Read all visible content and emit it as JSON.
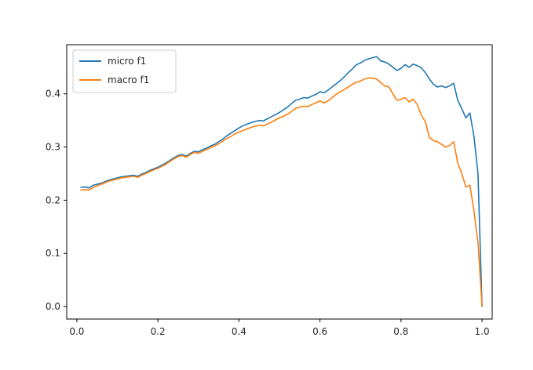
{
  "chart_data": {
    "type": "line",
    "title": "",
    "xlabel": "",
    "ylabel": "",
    "xlim": [
      -0.025,
      1.025
    ],
    "ylim": [
      -0.0235,
      0.4925
    ],
    "grid": false,
    "legend_position": "top-left",
    "x_ticks": [
      0.0,
      0.2,
      0.4,
      0.6,
      0.8,
      1.0
    ],
    "x_tick_labels": [
      "0.0",
      "0.2",
      "0.4",
      "0.6",
      "0.8",
      "1.0"
    ],
    "y_ticks": [
      0.0,
      0.1,
      0.2,
      0.3,
      0.4
    ],
    "y_tick_labels": [
      "0.0",
      "0.1",
      "0.2",
      "0.3",
      "0.4"
    ],
    "series": [
      {
        "name": "micro f1",
        "color": "#1f77b4",
        "x": [
          0.01,
          0.02,
          0.03,
          0.04,
          0.05,
          0.06,
          0.07,
          0.08,
          0.09,
          0.1,
          0.11,
          0.12,
          0.13,
          0.14,
          0.15,
          0.16,
          0.17,
          0.18,
          0.19,
          0.2,
          0.21,
          0.22,
          0.23,
          0.24,
          0.25,
          0.26,
          0.27,
          0.28,
          0.29,
          0.3,
          0.31,
          0.32,
          0.33,
          0.34,
          0.35,
          0.36,
          0.37,
          0.38,
          0.39,
          0.4,
          0.41,
          0.42,
          0.43,
          0.44,
          0.45,
          0.46,
          0.47,
          0.48,
          0.49,
          0.5,
          0.51,
          0.52,
          0.53,
          0.54,
          0.55,
          0.56,
          0.57,
          0.58,
          0.59,
          0.6,
          0.61,
          0.62,
          0.63,
          0.64,
          0.65,
          0.66,
          0.67,
          0.68,
          0.69,
          0.7,
          0.71,
          0.72,
          0.73,
          0.74,
          0.75,
          0.76,
          0.77,
          0.78,
          0.79,
          0.8,
          0.81,
          0.82,
          0.83,
          0.84,
          0.85,
          0.86,
          0.87,
          0.88,
          0.89,
          0.9,
          0.91,
          0.92,
          0.93,
          0.94,
          0.95,
          0.96,
          0.97,
          0.98,
          0.99,
          1.0
        ],
        "y": [
          0.224,
          0.225,
          0.223,
          0.228,
          0.23,
          0.232,
          0.235,
          0.238,
          0.24,
          0.242,
          0.244,
          0.245,
          0.246,
          0.247,
          0.245,
          0.249,
          0.252,
          0.256,
          0.259,
          0.262,
          0.266,
          0.27,
          0.275,
          0.28,
          0.284,
          0.286,
          0.283,
          0.288,
          0.292,
          0.291,
          0.295,
          0.298,
          0.302,
          0.305,
          0.31,
          0.315,
          0.321,
          0.326,
          0.331,
          0.336,
          0.34,
          0.343,
          0.346,
          0.348,
          0.35,
          0.349,
          0.353,
          0.357,
          0.361,
          0.365,
          0.37,
          0.375,
          0.382,
          0.388,
          0.39,
          0.393,
          0.392,
          0.396,
          0.399,
          0.404,
          0.402,
          0.407,
          0.413,
          0.419,
          0.425,
          0.432,
          0.44,
          0.447,
          0.455,
          0.458,
          0.463,
          0.466,
          0.468,
          0.47,
          0.462,
          0.46,
          0.456,
          0.45,
          0.444,
          0.448,
          0.455,
          0.45,
          0.456,
          0.453,
          0.449,
          0.44,
          0.428,
          0.418,
          0.413,
          0.415,
          0.412,
          0.415,
          0.42,
          0.388,
          0.372,
          0.355,
          0.364,
          0.32,
          0.25,
          0.0
        ]
      },
      {
        "name": "macro f1",
        "color": "#ff7f0e",
        "x": [
          0.01,
          0.02,
          0.03,
          0.04,
          0.05,
          0.06,
          0.07,
          0.08,
          0.09,
          0.1,
          0.11,
          0.12,
          0.13,
          0.14,
          0.15,
          0.16,
          0.17,
          0.18,
          0.19,
          0.2,
          0.21,
          0.22,
          0.23,
          0.24,
          0.25,
          0.26,
          0.27,
          0.28,
          0.29,
          0.3,
          0.31,
          0.32,
          0.33,
          0.34,
          0.35,
          0.36,
          0.37,
          0.38,
          0.39,
          0.4,
          0.41,
          0.42,
          0.43,
          0.44,
          0.45,
          0.46,
          0.47,
          0.48,
          0.49,
          0.5,
          0.51,
          0.52,
          0.53,
          0.54,
          0.55,
          0.56,
          0.57,
          0.58,
          0.59,
          0.6,
          0.61,
          0.62,
          0.63,
          0.64,
          0.65,
          0.66,
          0.67,
          0.68,
          0.69,
          0.7,
          0.71,
          0.72,
          0.73,
          0.74,
          0.75,
          0.76,
          0.77,
          0.78,
          0.79,
          0.8,
          0.81,
          0.82,
          0.83,
          0.84,
          0.85,
          0.86,
          0.87,
          0.88,
          0.89,
          0.9,
          0.91,
          0.92,
          0.93,
          0.94,
          0.95,
          0.96,
          0.97,
          0.98,
          0.99,
          1.0
        ],
        "y": [
          0.219,
          0.22,
          0.219,
          0.224,
          0.227,
          0.23,
          0.233,
          0.236,
          0.238,
          0.24,
          0.242,
          0.243,
          0.244,
          0.245,
          0.243,
          0.247,
          0.25,
          0.254,
          0.257,
          0.26,
          0.264,
          0.268,
          0.273,
          0.278,
          0.282,
          0.284,
          0.281,
          0.286,
          0.29,
          0.288,
          0.292,
          0.295,
          0.299,
          0.302,
          0.306,
          0.311,
          0.316,
          0.32,
          0.325,
          0.328,
          0.331,
          0.334,
          0.337,
          0.339,
          0.341,
          0.34,
          0.343,
          0.347,
          0.351,
          0.355,
          0.358,
          0.362,
          0.367,
          0.373,
          0.375,
          0.377,
          0.376,
          0.38,
          0.383,
          0.387,
          0.383,
          0.387,
          0.393,
          0.399,
          0.404,
          0.408,
          0.413,
          0.418,
          0.422,
          0.424,
          0.428,
          0.43,
          0.429,
          0.428,
          0.421,
          0.415,
          0.413,
          0.4,
          0.388,
          0.39,
          0.393,
          0.385,
          0.39,
          0.38,
          0.36,
          0.348,
          0.318,
          0.312,
          0.31,
          0.305,
          0.3,
          0.303,
          0.31,
          0.27,
          0.25,
          0.225,
          0.228,
          0.18,
          0.12,
          0.0
        ]
      }
    ]
  }
}
